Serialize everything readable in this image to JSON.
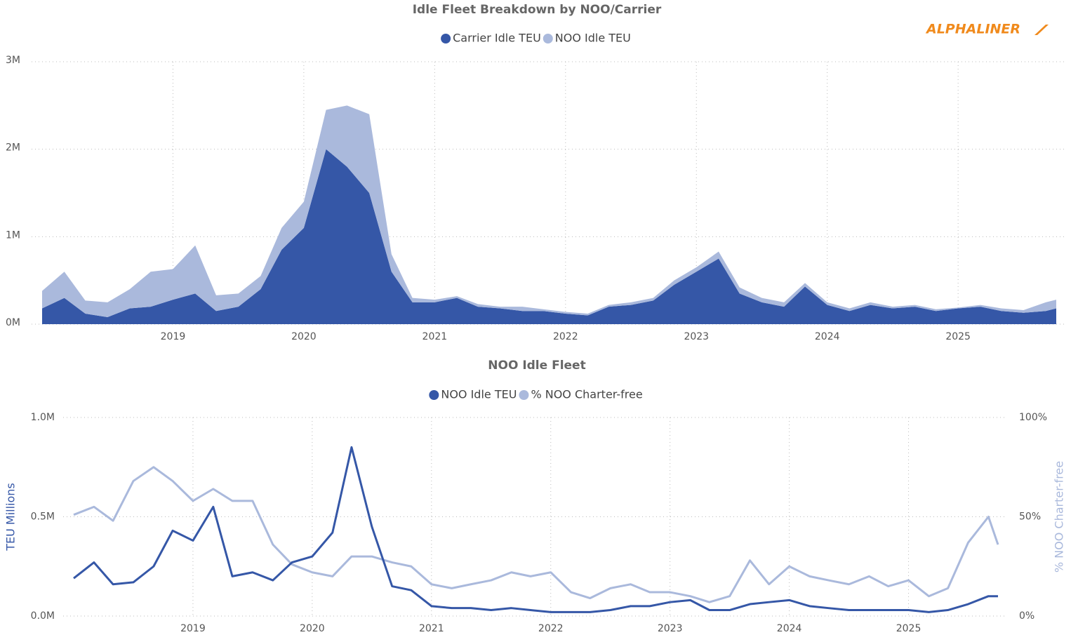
{
  "logo": "ALPHALINER",
  "chart_data": [
    {
      "type": "area",
      "title": "Idle Fleet Breakdown by NOO/Carrier",
      "stacked": true,
      "legend": "top",
      "x": [
        2018.0,
        2018.17,
        2018.33,
        2018.5,
        2018.67,
        2018.83,
        2019.0,
        2019.17,
        2019.33,
        2019.5,
        2019.67,
        2019.83,
        2020.0,
        2020.17,
        2020.33,
        2020.5,
        2020.67,
        2020.83,
        2021.0,
        2021.17,
        2021.33,
        2021.5,
        2021.67,
        2021.83,
        2022.0,
        2022.17,
        2022.33,
        2022.5,
        2022.67,
        2022.83,
        2023.0,
        2023.17,
        2023.33,
        2023.5,
        2023.67,
        2023.83,
        2024.0,
        2024.17,
        2024.33,
        2024.5,
        2024.67,
        2024.83,
        2025.0,
        2025.17,
        2025.33,
        2025.5,
        2025.67,
        2025.75
      ],
      "series": [
        {
          "name": "Carrier Idle TEU",
          "color": "#3557a7",
          "values": [
            180000,
            300000,
            120000,
            80000,
            180000,
            200000,
            280000,
            350000,
            150000,
            200000,
            400000,
            850000,
            1100000,
            2000000,
            1800000,
            1500000,
            600000,
            250000,
            250000,
            300000,
            200000,
            180000,
            150000,
            150000,
            120000,
            100000,
            200000,
            220000,
            270000,
            450000,
            600000,
            750000,
            350000,
            250000,
            200000,
            430000,
            220000,
            150000,
            220000,
            180000,
            200000,
            150000,
            180000,
            200000,
            150000,
            130000,
            150000,
            180000
          ]
        },
        {
          "name": "NOO Idle TEU",
          "color": "#aab9dc",
          "values": [
            200000,
            300000,
            150000,
            170000,
            220000,
            400000,
            350000,
            550000,
            180000,
            150000,
            150000,
            250000,
            300000,
            450000,
            700000,
            900000,
            200000,
            50000,
            30000,
            20000,
            30000,
            20000,
            50000,
            20000,
            20000,
            20000,
            20000,
            30000,
            30000,
            50000,
            50000,
            80000,
            70000,
            50000,
            50000,
            40000,
            30000,
            30000,
            30000,
            20000,
            20000,
            20000,
            10000,
            20000,
            30000,
            30000,
            100000,
            100000
          ]
        }
      ],
      "xlim": [
        2018.0,
        2025.75
      ],
      "xticks": [
        2019,
        2020,
        2021,
        2022,
        2023,
        2024,
        2025
      ],
      "ylim": [
        0,
        3000000
      ],
      "yticks": [
        {
          "value": 0,
          "label": "0M"
        },
        {
          "value": 1000000,
          "label": "1M"
        },
        {
          "value": 2000000,
          "label": "2M"
        },
        {
          "value": 3000000,
          "label": "3M"
        }
      ],
      "grid": true
    },
    {
      "type": "line",
      "title": "NOO Idle Fleet",
      "legend": "top",
      "y_label": "TEU Millions",
      "y2_label": "% NOO Charter-free",
      "x": [
        2018.0,
        2018.17,
        2018.33,
        2018.5,
        2018.67,
        2018.83,
        2019.0,
        2019.17,
        2019.33,
        2019.5,
        2019.67,
        2019.83,
        2020.0,
        2020.17,
        2020.33,
        2020.5,
        2020.67,
        2020.83,
        2021.0,
        2021.17,
        2021.33,
        2021.5,
        2021.67,
        2021.83,
        2022.0,
        2022.17,
        2022.33,
        2022.5,
        2022.67,
        2022.83,
        2023.0,
        2023.17,
        2023.33,
        2023.5,
        2023.67,
        2023.83,
        2024.0,
        2024.17,
        2024.33,
        2024.5,
        2024.67,
        2024.83,
        2025.0,
        2025.17,
        2025.33,
        2025.5,
        2025.67,
        2025.75
      ],
      "series": [
        {
          "name": "NOO Idle TEU",
          "color": "#3557a7",
          "values": [
            190000,
            270000,
            160000,
            170000,
            250000,
            430000,
            380000,
            550000,
            200000,
            220000,
            180000,
            270000,
            300000,
            420000,
            850000,
            450000,
            150000,
            130000,
            50000,
            40000,
            40000,
            30000,
            40000,
            30000,
            20000,
            20000,
            20000,
            30000,
            50000,
            50000,
            70000,
            80000,
            30000,
            30000,
            60000,
            70000,
            80000,
            50000,
            40000,
            30000,
            30000,
            30000,
            30000,
            20000,
            30000,
            60000,
            100000,
            100000
          ]
        },
        {
          "name": "% NOO Charter-free",
          "color": "#aab9dc",
          "axis": "y2",
          "values": [
            51,
            55,
            48,
            68,
            75,
            68,
            58,
            64,
            58,
            58,
            36,
            26,
            22,
            20,
            30,
            30,
            27,
            25,
            16,
            14,
            16,
            18,
            22,
            20,
            22,
            12,
            9,
            14,
            16,
            12,
            12,
            10,
            7,
            10,
            28,
            16,
            25,
            20,
            18,
            16,
            20,
            15,
            18,
            10,
            14,
            37,
            50,
            36
          ]
        }
      ],
      "xlim": [
        2018.0,
        2025.75
      ],
      "xticks": [
        2019,
        2020,
        2021,
        2022,
        2023,
        2024,
        2025
      ],
      "ylim": [
        0,
        1000000
      ],
      "yticks": [
        {
          "value": 0,
          "label": "0.0M"
        },
        {
          "value": 500000,
          "label": "0.5M"
        },
        {
          "value": 1000000,
          "label": "1.0M"
        }
      ],
      "y2lim": [
        0,
        100
      ],
      "y2ticks": [
        {
          "value": 0,
          "label": "0%"
        },
        {
          "value": 50,
          "label": "50%"
        },
        {
          "value": 100,
          "label": "100%"
        }
      ],
      "grid": true
    }
  ]
}
